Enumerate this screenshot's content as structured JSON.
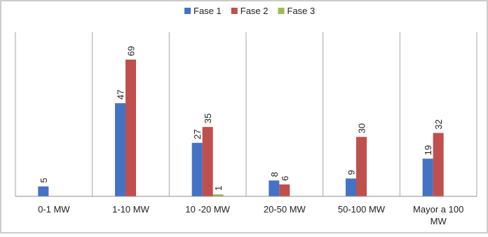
{
  "chart_data": {
    "type": "bar",
    "title": "",
    "xlabel": "",
    "ylabel": "",
    "legend_position": "top",
    "gridlines": "vertical category separators",
    "ylim": [
      0,
      80
    ],
    "categories": [
      "0-1 MW",
      "1-10 MW",
      "10 -20 MW",
      "20-50 MW",
      "50-100 MW",
      "Mayor a 100 MW"
    ],
    "category_lines": [
      [
        "0-1 MW"
      ],
      [
        "1-10 MW"
      ],
      [
        "10 -20 MW"
      ],
      [
        "20-50 MW"
      ],
      [
        "50-100 MW"
      ],
      [
        "Mayor a 100",
        "MW"
      ]
    ],
    "series": [
      {
        "name": "Fase 1",
        "color": "#4472C4",
        "values": [
          5,
          47,
          27,
          8,
          9,
          19
        ]
      },
      {
        "name": "Fase 2",
        "color": "#C0504D",
        "values": [
          null,
          69,
          35,
          6,
          30,
          32
        ]
      },
      {
        "name": "Fase 3",
        "color": "#9BBB59",
        "values": [
          null,
          null,
          1,
          null,
          null,
          null
        ]
      }
    ]
  }
}
